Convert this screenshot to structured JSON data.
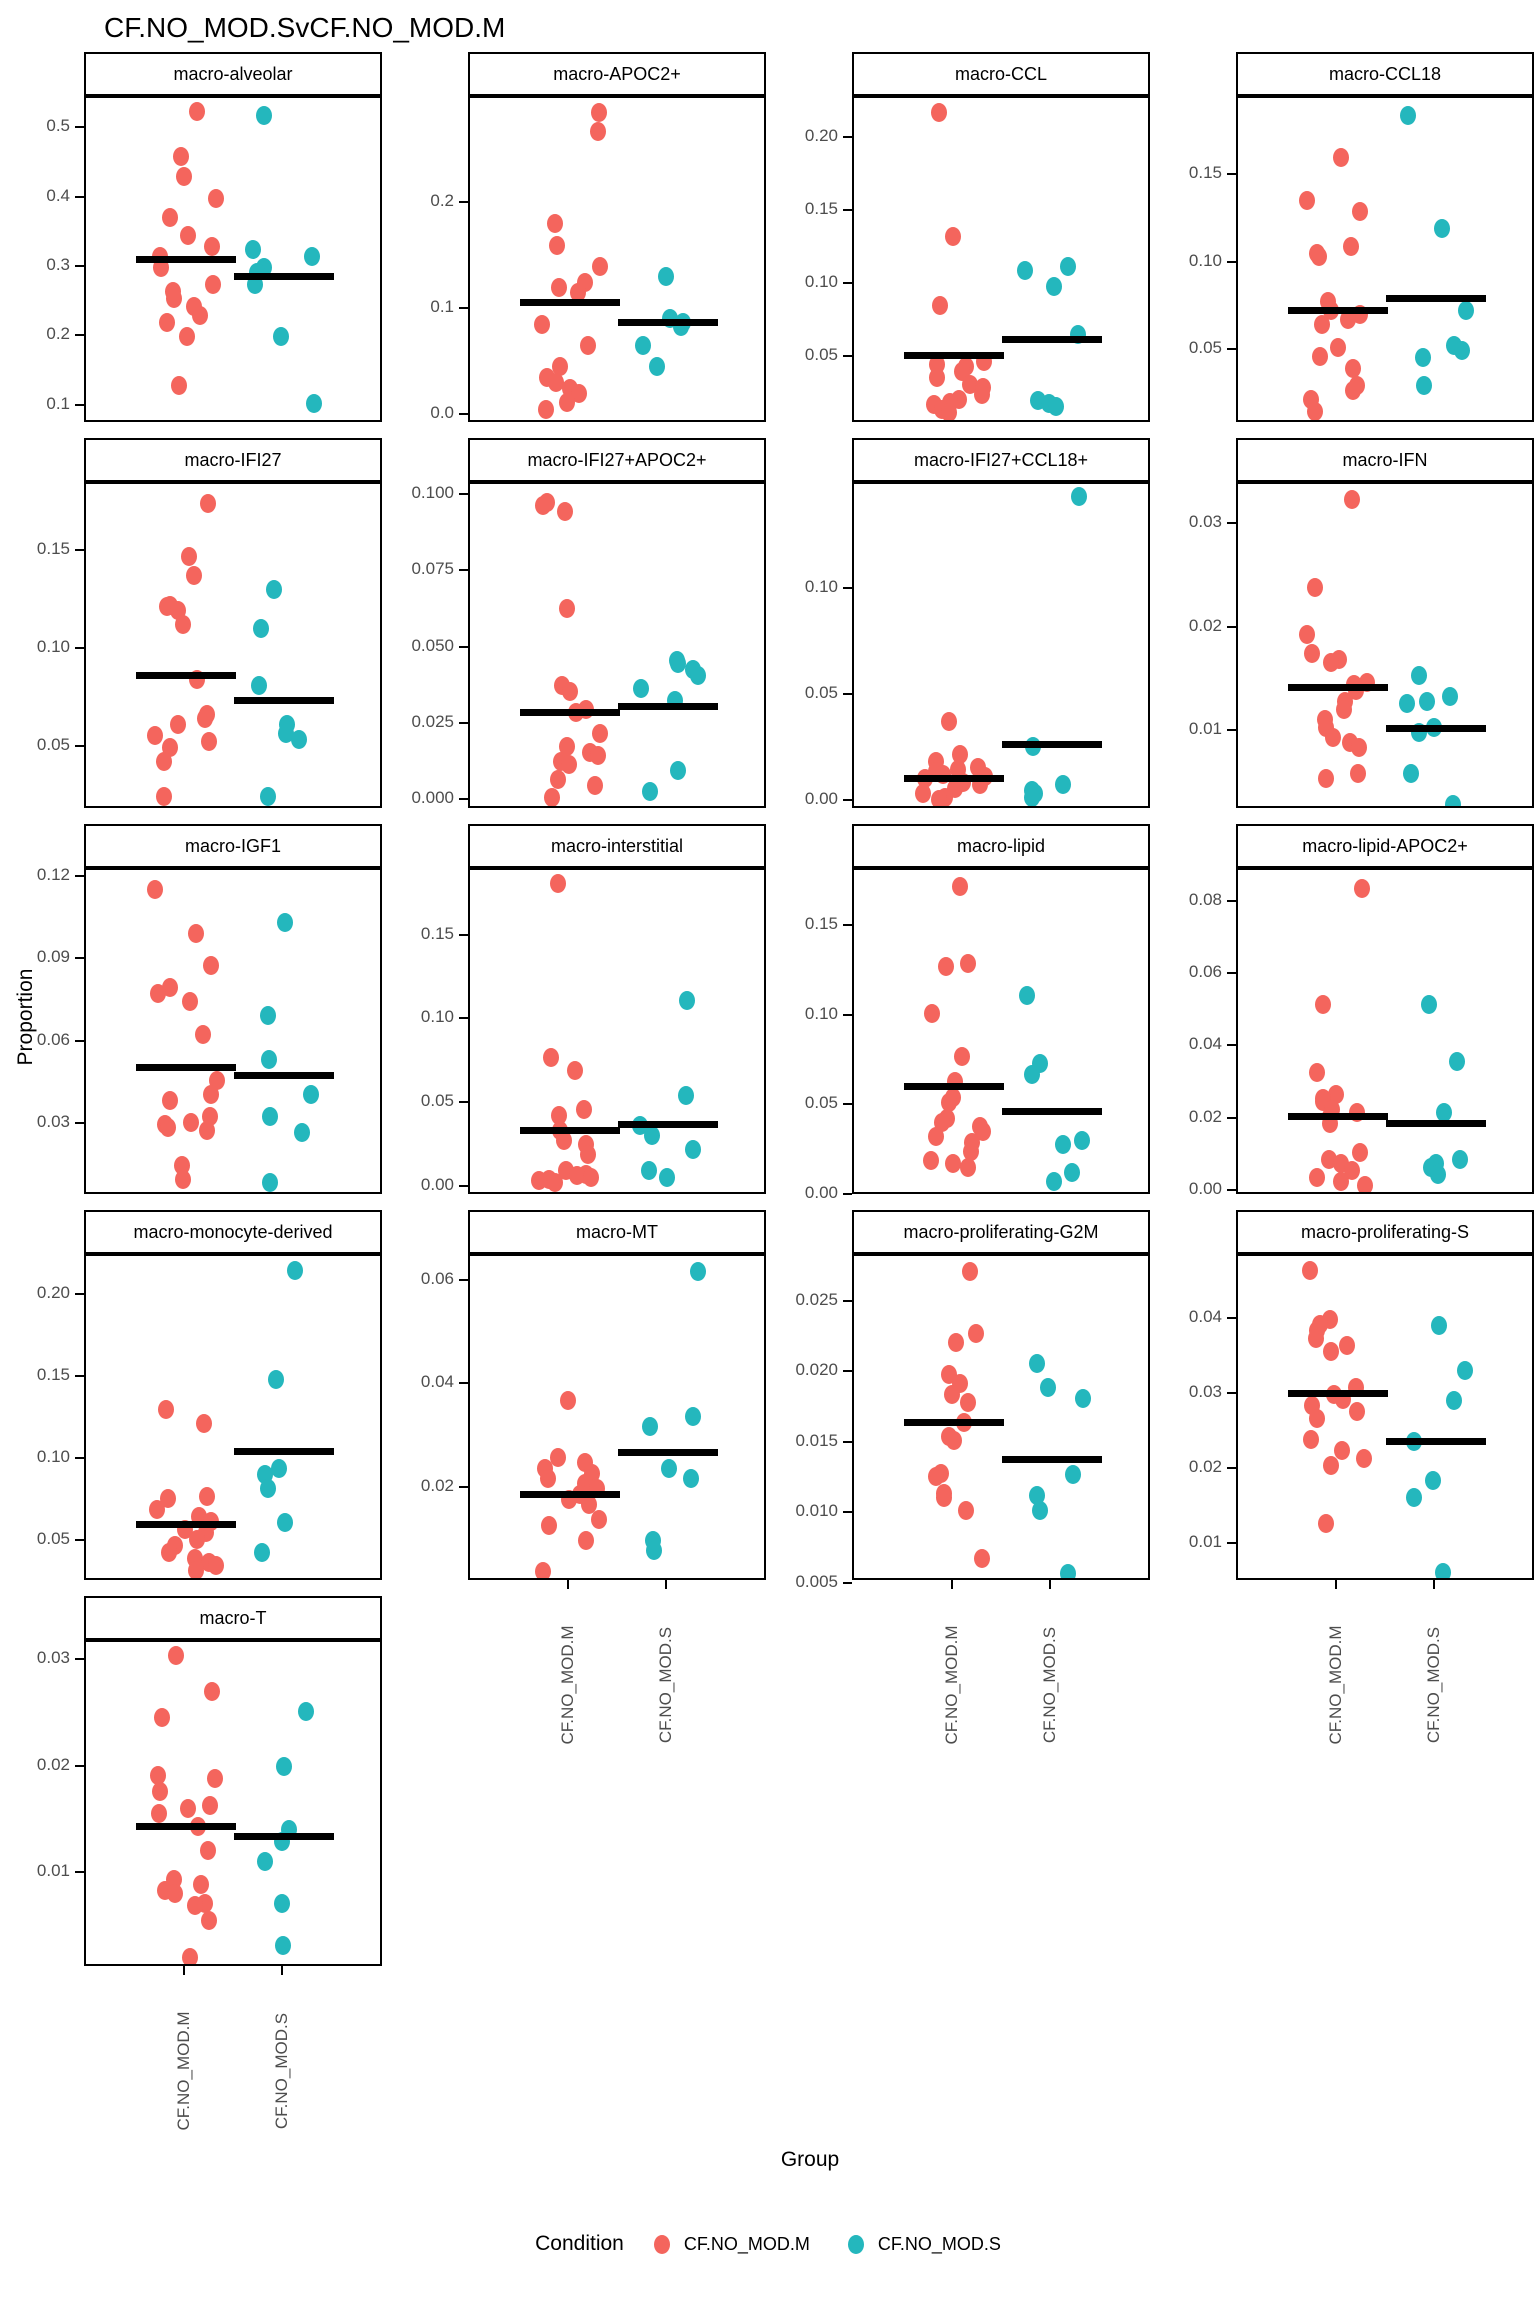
{
  "title": "CF.NO_MOD.SvCF.NO_MOD.M",
  "axis": {
    "x_label": "Group",
    "y_label": "Proportion"
  },
  "legend": {
    "title": "Condition",
    "entries": [
      {
        "label": "CF.NO_MOD.M",
        "color": "#F4655D"
      },
      {
        "label": "CF.NO_MOD.S",
        "color": "#24B7BD"
      }
    ]
  },
  "chart_data": {
    "type": "scatter",
    "subtype": "faceted-jitter-strip-plot",
    "categories": [
      "CF.NO_MOD.M",
      "CF.NO_MOD.S"
    ],
    "x_tick_labels": [
      "CF.NO_MOD.M",
      "CF.NO_MOD.S"
    ],
    "grid": false,
    "legend_position": "bottom",
    "summary_bar": "median",
    "facets": [
      {
        "name": "macro-alveolar",
        "ylim": [
          0.075,
          0.545
        ],
        "yticks": [
          0.1,
          0.2,
          0.3,
          0.4,
          0.5
        ],
        "decimals": 1,
        "series": [
          {
            "name": "CF.NO_MOD.M",
            "median": 0.312,
            "values": [
              0.525,
              0.46,
              0.432,
              0.4,
              0.372,
              0.347,
              0.331,
              0.316,
              0.301,
              0.276,
              0.266,
              0.256,
              0.245,
              0.232,
              0.221,
              0.201,
              0.131
            ]
          },
          {
            "name": "CF.NO_MOD.S",
            "median": 0.287,
            "values": [
              0.52,
              0.326,
              0.316,
              0.301,
              0.294,
              0.276,
              0.201,
              0.105
            ]
          }
        ]
      },
      {
        "name": "macro-APOC2+",
        "ylim": [
          -0.008,
          0.3
        ],
        "yticks": [
          0.0,
          0.1,
          0.2
        ],
        "decimals": 1,
        "series": [
          {
            "name": "CF.NO_MOD.M",
            "median": 0.107,
            "values": [
              0.286,
              0.268,
              0.181,
              0.161,
              0.141,
              0.126,
              0.121,
              0.116,
              0.086,
              0.066,
              0.046,
              0.036,
              0.031,
              0.026,
              0.021,
              0.012,
              0.006
            ]
          },
          {
            "name": "CF.NO_MOD.S",
            "median": 0.088,
            "values": [
              0.131,
              0.092,
              0.088,
              0.084,
              0.066,
              0.046
            ]
          }
        ]
      },
      {
        "name": "macro-CCL",
        "ylim": [
          0.005,
          0.228
        ],
        "yticks": [
          0.05,
          0.1,
          0.15,
          0.2
        ],
        "decimals": 2,
        "series": [
          {
            "name": "CF.NO_MOD.M",
            "median": 0.052,
            "values": [
              0.218,
              0.133,
              0.086,
              0.048,
              0.046,
              0.044,
              0.041,
              0.037,
              0.032,
              0.03,
              0.025,
              0.022,
              0.02,
              0.018,
              0.015,
              0.013
            ]
          },
          {
            "name": "CF.NO_MOD.S",
            "median": 0.063,
            "values": [
              0.113,
              0.11,
              0.099,
              0.066,
              0.021,
              0.019,
              0.017
            ]
          }
        ]
      },
      {
        "name": "macro-CCL18",
        "ylim": [
          0.008,
          0.195
        ],
        "yticks": [
          0.05,
          0.1,
          0.15
        ],
        "decimals": 2,
        "series": [
          {
            "name": "CF.NO_MOD.M",
            "median": 0.073,
            "values": [
              0.161,
              0.136,
              0.13,
              0.11,
              0.106,
              0.104,
              0.078,
              0.073,
              0.071,
              0.068,
              0.065,
              0.052,
              0.047,
              0.04,
              0.03,
              0.027,
              0.022,
              0.015
            ]
          },
          {
            "name": "CF.NO_MOD.S",
            "median": 0.08,
            "values": [
              0.185,
              0.12,
              0.073,
              0.053,
              0.05,
              0.046,
              0.03
            ]
          }
        ]
      },
      {
        "name": "macro-IFI27",
        "ylim": [
          0.018,
          0.185
        ],
        "yticks": [
          0.05,
          0.1,
          0.15
        ],
        "decimals": 2,
        "series": [
          {
            "name": "CF.NO_MOD.M",
            "median": 0.087,
            "values": [
              0.175,
              0.148,
              0.138,
              0.123,
              0.122,
              0.12,
              0.113,
              0.085,
              0.067,
              0.065,
              0.062,
              0.056,
              0.053,
              0.05,
              0.043,
              0.025
            ]
          },
          {
            "name": "CF.NO_MOD.S",
            "median": 0.074,
            "values": [
              0.131,
              0.111,
              0.082,
              0.062,
              0.057,
              0.054,
              0.025
            ]
          }
        ]
      },
      {
        "name": "macro-IFI27+APOC2+",
        "ylim": [
          -0.003,
          0.104
        ],
        "yticks": [
          0.0,
          0.025,
          0.05,
          0.075,
          0.1
        ],
        "decimals": 3,
        "series": [
          {
            "name": "CF.NO_MOD.M",
            "median": 0.029,
            "values": [
              0.098,
              0.097,
              0.095,
              0.063,
              0.038,
              0.036,
              0.03,
              0.029,
              0.022,
              0.018,
              0.016,
              0.015,
              0.013,
              0.012,
              0.007,
              0.005,
              0.001
            ]
          },
          {
            "name": "CF.NO_MOD.S",
            "median": 0.031,
            "values": [
              0.046,
              0.045,
              0.043,
              0.041,
              0.037,
              0.033,
              0.01,
              0.003
            ]
          }
        ]
      },
      {
        "name": "macro-IFI27+CCL18+",
        "ylim": [
          -0.004,
          0.15
        ],
        "yticks": [
          0.0,
          0.05,
          0.1
        ],
        "decimals": 2,
        "series": [
          {
            "name": "CF.NO_MOD.M",
            "median": 0.011,
            "values": [
              0.038,
              0.022,
              0.019,
              0.016,
              0.015,
              0.014,
              0.013,
              0.012,
              0.011,
              0.01,
              0.009,
              0.008,
              0.006,
              0.004,
              0.002,
              0.001
            ]
          },
          {
            "name": "CF.NO_MOD.S",
            "median": 0.027,
            "values": [
              0.144,
              0.026,
              0.008,
              0.005,
              0.004,
              0.002
            ]
          }
        ]
      },
      {
        "name": "macro-IFN",
        "ylim": [
          0.0025,
          0.034
        ],
        "yticks": [
          0.01,
          0.02,
          0.03
        ],
        "decimals": 2,
        "series": [
          {
            "name": "CF.NO_MOD.M",
            "median": 0.0143,
            "values": [
              0.0325,
              0.024,
              0.0195,
              0.0176,
              0.017,
              0.0168,
              0.0148,
              0.0146,
              0.014,
              0.013,
              0.0122,
              0.0112,
              0.0105,
              0.0095,
              0.009,
              0.0085,
              0.006,
              0.0055
            ]
          },
          {
            "name": "CF.NO_MOD.S",
            "median": 0.0104,
            "values": [
              0.0155,
              0.0135,
              0.013,
              0.0128,
              0.0105,
              0.01,
              0.006,
              0.003
            ]
          }
        ]
      },
      {
        "name": "macro-IGF1",
        "ylim": [
          0.004,
          0.123
        ],
        "yticks": [
          0.03,
          0.06,
          0.09,
          0.12
        ],
        "decimals": 2,
        "series": [
          {
            "name": "CF.NO_MOD.M",
            "median": 0.051,
            "values": [
              0.116,
              0.1,
              0.088,
              0.08,
              0.078,
              0.075,
              0.063,
              0.046,
              0.041,
              0.039,
              0.033,
              0.031,
              0.03,
              0.029,
              0.028,
              0.015,
              0.01
            ]
          },
          {
            "name": "CF.NO_MOD.S",
            "median": 0.048,
            "values": [
              0.104,
              0.07,
              0.054,
              0.041,
              0.033,
              0.027,
              0.009
            ]
          }
        ]
      },
      {
        "name": "macro-interstitial",
        "ylim": [
          -0.005,
          0.19
        ],
        "yticks": [
          0.0,
          0.05,
          0.1,
          0.15
        ],
        "decimals": 2,
        "series": [
          {
            "name": "CF.NO_MOD.M",
            "median": 0.034,
            "values": [
              0.182,
              0.078,
              0.07,
              0.047,
              0.043,
              0.034,
              0.028,
              0.026,
              0.02,
              0.01,
              0.008,
              0.007,
              0.006,
              0.005,
              0.004,
              0.003
            ]
          },
          {
            "name": "CF.NO_MOD.S",
            "median": 0.038,
            "values": [
              0.112,
              0.055,
              0.037,
              0.031,
              0.023,
              0.01,
              0.006
            ]
          }
        ]
      },
      {
        "name": "macro-lipid",
        "ylim": [
          0.0,
          0.182
        ],
        "yticks": [
          0.0,
          0.05,
          0.1,
          0.15
        ],
        "decimals": 2,
        "series": [
          {
            "name": "CF.NO_MOD.M",
            "median": 0.061,
            "values": [
              0.173,
              0.13,
              0.128,
              0.102,
              0.078,
              0.064,
              0.055,
              0.052,
              0.043,
              0.041,
              0.039,
              0.036,
              0.033,
              0.03,
              0.025,
              0.02,
              0.018,
              0.016
            ]
          },
          {
            "name": "CF.NO_MOD.S",
            "median": 0.047,
            "values": [
              0.112,
              0.074,
              0.068,
              0.031,
              0.029,
              0.013,
              0.008
            ]
          }
        ]
      },
      {
        "name": "macro-lipid-APOC2+",
        "ylim": [
          -0.001,
          0.089
        ],
        "yticks": [
          0.0,
          0.02,
          0.04,
          0.06,
          0.08
        ],
        "decimals": 2,
        "series": [
          {
            "name": "CF.NO_MOD.M",
            "median": 0.021,
            "values": [
              0.084,
              0.052,
              0.033,
              0.027,
              0.026,
              0.025,
              0.023,
              0.022,
              0.021,
              0.019,
              0.011,
              0.009,
              0.008,
              0.006,
              0.004,
              0.003,
              0.002
            ]
          },
          {
            "name": "CF.NO_MOD.S",
            "median": 0.019,
            "values": [
              0.052,
              0.036,
              0.022,
              0.009,
              0.008,
              0.007,
              0.005
            ]
          }
        ]
      },
      {
        "name": "macro-monocyte-derived",
        "ylim": [
          0.026,
          0.224
        ],
        "yticks": [
          0.05,
          0.1,
          0.15,
          0.2
        ],
        "decimals": 2,
        "series": [
          {
            "name": "CF.NO_MOD.M",
            "median": 0.061,
            "values": [
              0.131,
              0.122,
              0.078,
              0.077,
              0.07,
              0.066,
              0.063,
              0.058,
              0.056,
              0.052,
              0.048,
              0.044,
              0.04,
              0.038,
              0.036,
              0.033
            ]
          },
          {
            "name": "CF.NO_MOD.S",
            "median": 0.105,
            "values": [
              0.215,
              0.149,
              0.095,
              0.091,
              0.083,
              0.062,
              0.044
            ]
          }
        ]
      },
      {
        "name": "macro-MT",
        "ylim": [
          0.002,
          0.065
        ],
        "yticks": [
          0.02,
          0.04,
          0.06
        ],
        "decimals": 2,
        "series": [
          {
            "name": "CF.NO_MOD.M",
            "median": 0.019,
            "values": [
              0.037,
              0.026,
              0.025,
              0.024,
              0.023,
              0.022,
              0.021,
              0.02,
              0.019,
              0.018,
              0.017,
              0.014,
              0.013,
              0.01,
              0.004
            ]
          },
          {
            "name": "CF.NO_MOD.S",
            "median": 0.027,
            "values": [
              0.062,
              0.034,
              0.032,
              0.024,
              0.022,
              0.01,
              0.008
            ]
          }
        ]
      },
      {
        "name": "macro-proliferating-G2M",
        "ylim": [
          0.0052,
          0.0283
        ],
        "yticks": [
          0.005,
          0.01,
          0.015,
          0.02,
          0.025
        ],
        "decimals": 3,
        "series": [
          {
            "name": "CF.NO_MOD.M",
            "median": 0.0165,
            "values": [
              0.0272,
              0.0228,
              0.0222,
              0.0199,
              0.0193,
              0.0185,
              0.0179,
              0.0165,
              0.0155,
              0.0152,
              0.0129,
              0.0127,
              0.0115,
              0.0112,
              0.0103,
              0.0069
            ]
          },
          {
            "name": "CF.NO_MOD.S",
            "median": 0.0139,
            "values": [
              0.0207,
              0.019,
              0.0182,
              0.0128,
              0.0113,
              0.0103,
              0.0058
            ]
          }
        ]
      },
      {
        "name": "macro-proliferating-S",
        "ylim": [
          0.005,
          0.0485
        ],
        "yticks": [
          0.01,
          0.02,
          0.03,
          0.04
        ],
        "decimals": 2,
        "series": [
          {
            "name": "CF.NO_MOD.M",
            "median": 0.0302,
            "values": [
              0.0465,
              0.04,
              0.0393,
              0.0385,
              0.0375,
              0.0365,
              0.0358,
              0.031,
              0.03,
              0.0293,
              0.0285,
              0.0278,
              0.0268,
              0.024,
              0.0225,
              0.0215,
              0.0205,
              0.0128
            ]
          },
          {
            "name": "CF.NO_MOD.S",
            "median": 0.0237,
            "values": [
              0.0392,
              0.0332,
              0.0292,
              0.0238,
              0.0185,
              0.0163,
              0.0063
            ]
          }
        ]
      },
      {
        "name": "macro-T",
        "ylim": [
          0.0012,
          0.0318
        ],
        "yticks": [
          0.01,
          0.02,
          0.03
        ],
        "decimals": 2,
        "series": [
          {
            "name": "CF.NO_MOD.M",
            "median": 0.0145,
            "values": [
              0.0305,
              0.0272,
              0.0247,
              0.0193,
              0.019,
              0.0178,
              0.0165,
              0.0162,
              0.0157,
              0.0145,
              0.0122,
              0.0095,
              0.009,
              0.0085,
              0.0082,
              0.0073,
              0.0071,
              0.0057,
              0.0022
            ]
          },
          {
            "name": "CF.NO_MOD.S",
            "median": 0.0135,
            "values": [
              0.0253,
              0.0201,
              0.0142,
              0.0131,
              0.0112,
              0.0073,
              0.0033
            ]
          }
        ]
      }
    ]
  }
}
